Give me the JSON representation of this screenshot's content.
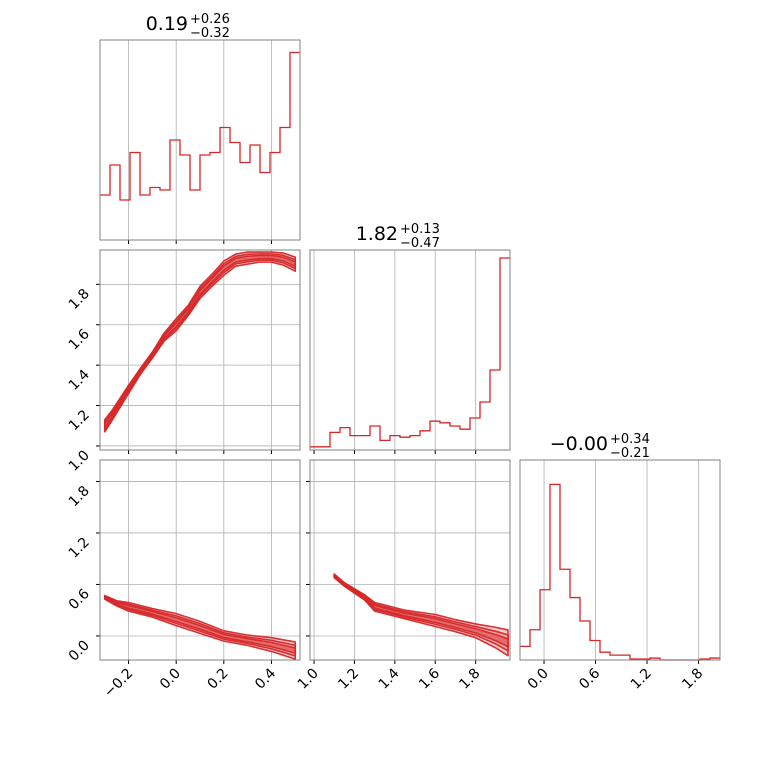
{
  "chart_data": {
    "type": "corner",
    "color": "#d62728",
    "fill_colors": [
      "#f7c7c8",
      "#ef9fa1",
      "#e56a6c"
    ],
    "params": [
      {
        "title": {
          "median": "0.19",
          "plus": "+0.26",
          "minus": "−0.32"
        },
        "range": [
          -0.32,
          0.52
        ],
        "ticks": [
          -0.2,
          0.0,
          0.2,
          0.4
        ],
        "tick_labels": [
          "−0.2",
          "0.0",
          "0.2",
          "0.4"
        ],
        "hist": {
          "bin_edges": [
            -0.32,
            -0.278,
            -0.236,
            -0.194,
            -0.152,
            -0.11,
            -0.068,
            -0.026,
            0.016,
            0.058,
            0.1,
            0.142,
            0.184,
            0.226,
            0.268,
            0.31,
            0.352,
            0.394,
            0.436,
            0.478,
            0.52
          ],
          "counts": [
            18,
            30,
            16,
            35,
            18,
            21,
            20,
            40,
            34,
            20,
            34,
            35,
            45,
            39,
            31,
            38,
            27,
            35,
            45,
            75
          ],
          "ymax": 80
        }
      },
      {
        "title": {
          "median": "1.82",
          "plus": "+0.13",
          "minus": "−0.47"
        },
        "range": [
          0.98,
          1.97
        ],
        "ticks": [
          1.0,
          1.2,
          1.4,
          1.6,
          1.8
        ],
        "tick_labels": [
          "1.0",
          "1.2",
          "1.4",
          "1.6",
          "1.8"
        ],
        "hist": {
          "bin_edges": [
            0.98,
            1.0295,
            1.079,
            1.1285,
            1.178,
            1.2275,
            1.277,
            1.3265,
            1.376,
            1.4255,
            1.475,
            1.5245,
            1.574,
            1.6235,
            1.673,
            1.7225,
            1.772,
            1.8215,
            1.871,
            1.9205,
            1.97
          ],
          "counts": [
            2,
            2,
            11,
            14,
            9,
            9,
            15,
            6,
            9,
            8,
            9,
            12,
            18,
            17,
            15,
            13,
            20,
            30,
            50,
            120
          ],
          "ymax": 125
        }
      },
      {
        "title": {
          "median": "−0.00",
          "plus": "+0.34",
          "minus": "−0.21"
        },
        "range": [
          -0.28,
          2.05
        ],
        "ticks": [
          0.0,
          0.6,
          1.2,
          1.8
        ],
        "tick_labels": [
          "0.0",
          "0.6",
          "1.2",
          "1.8"
        ],
        "hist": {
          "bin_edges": [
            -0.28,
            -0.1635,
            -0.047,
            0.0695,
            0.186,
            0.3025,
            0.419,
            0.5355,
            0.652,
            0.7685,
            0.885,
            1.0015,
            1.118,
            1.2345,
            1.351,
            1.4675,
            1.584,
            1.7005,
            1.817,
            1.9335,
            2.05
          ],
          "counts": [
            14,
            31,
            72,
            180,
            93,
            64,
            40,
            20,
            8,
            5,
            5,
            1,
            1,
            2,
            0,
            0,
            0,
            0,
            1,
            2
          ],
          "ymax": 205
        }
      }
    ],
    "pairs": [
      {
        "x_param": 0,
        "y_param": 1,
        "points": [
          [
            -0.3,
            1.1
          ],
          [
            -0.27,
            1.15
          ],
          [
            -0.2,
            1.28
          ],
          [
            -0.15,
            1.37
          ],
          [
            -0.1,
            1.45
          ],
          [
            -0.05,
            1.54
          ],
          [
            0.0,
            1.6
          ],
          [
            0.05,
            1.67
          ],
          [
            0.1,
            1.76
          ],
          [
            0.15,
            1.82
          ],
          [
            0.2,
            1.88
          ],
          [
            0.25,
            1.92
          ],
          [
            0.3,
            1.93
          ],
          [
            0.35,
            1.935
          ],
          [
            0.4,
            1.935
          ],
          [
            0.45,
            1.925
          ],
          [
            0.5,
            1.9
          ]
        ],
        "widths": [
          0.03,
          0.025,
          0.02,
          0.015,
          0.015,
          0.02,
          0.03,
          0.025,
          0.03,
          0.03,
          0.035,
          0.03,
          0.03,
          0.025,
          0.025,
          0.03,
          0.035
        ]
      },
      {
        "x_param": 0,
        "y_param": 2,
        "points": [
          [
            -0.3,
            0.45
          ],
          [
            -0.25,
            0.38
          ],
          [
            -0.2,
            0.34
          ],
          [
            -0.1,
            0.27
          ],
          [
            0.0,
            0.19
          ],
          [
            0.1,
            0.1
          ],
          [
            0.2,
            0.0
          ],
          [
            0.3,
            -0.05
          ],
          [
            0.4,
            -0.1
          ],
          [
            0.5,
            -0.17
          ]
        ],
        "widths": [
          0.02,
          0.03,
          0.05,
          0.05,
          0.07,
          0.07,
          0.06,
          0.06,
          0.08,
          0.1
        ]
      },
      {
        "x_param": 1,
        "y_param": 2,
        "points": [
          [
            1.1,
            0.7
          ],
          [
            1.15,
            0.6
          ],
          [
            1.25,
            0.45
          ],
          [
            1.3,
            0.34
          ],
          [
            1.45,
            0.25
          ],
          [
            1.6,
            0.18
          ],
          [
            1.7,
            0.12
          ],
          [
            1.8,
            0.06
          ],
          [
            1.9,
            -0.02
          ],
          [
            1.96,
            -0.08
          ]
        ],
        "widths": [
          0.02,
          0.02,
          0.03,
          0.05,
          0.05,
          0.07,
          0.07,
          0.08,
          0.12,
          0.15
        ]
      }
    ]
  }
}
